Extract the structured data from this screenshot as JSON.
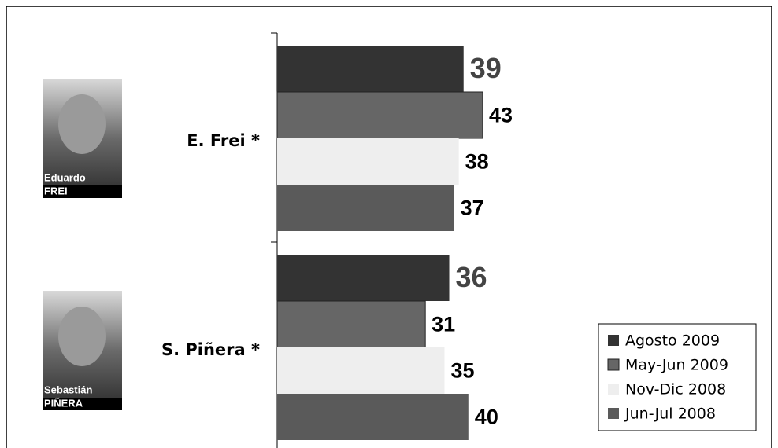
{
  "chart_data": {
    "type": "hbar",
    "categories": [
      "E. Frei *",
      "S. Piñera *"
    ],
    "photo_captions": [
      [
        "Eduardo",
        "FREI"
      ],
      [
        "Sebastián",
        "PIÑERA"
      ]
    ],
    "series": [
      {
        "name": "Agosto 2009",
        "color": "#333333",
        "values": [
          39,
          36
        ]
      },
      {
        "name": "May-Jun 2009",
        "color": "#666666",
        "values": [
          43,
          31
        ]
      },
      {
        "name": "Nov-Dic 2008",
        "color": "#eeeeee",
        "values": [
          38,
          35
        ]
      },
      {
        "name": "Jun-Jul 2008",
        "color": "#5a5a5a",
        "values": [
          37,
          40
        ]
      }
    ],
    "xlim": [
      0,
      100
    ],
    "legend": "lower right"
  }
}
